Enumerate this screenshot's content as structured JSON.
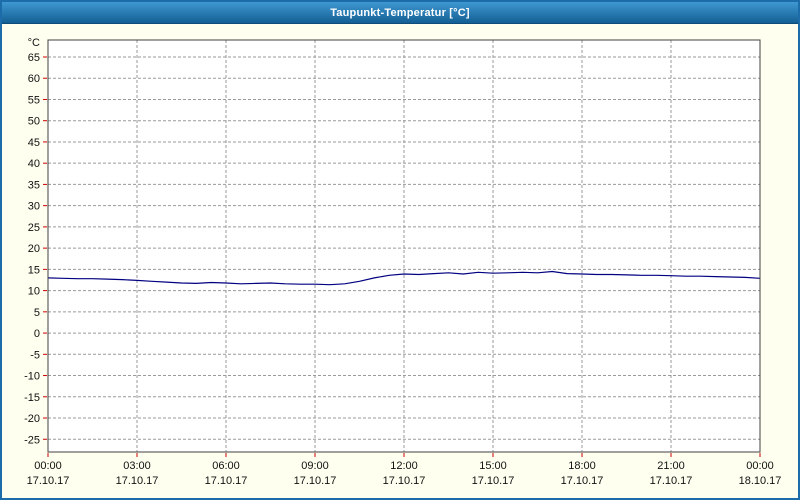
{
  "window": {
    "title": "Taupunkt-Temperatur [°C]",
    "titlebar_gradient": [
      "#3f98d2",
      "#135f94"
    ]
  },
  "chart_data": {
    "type": "line",
    "title": "Taupunkt-Temperatur [°C]",
    "ylabel": "°C",
    "xlabel": "",
    "ylim": [
      -28,
      69
    ],
    "xlim": [
      0,
      24
    ],
    "grid": true,
    "legend": "none",
    "yticks": [
      -25,
      -20,
      -15,
      -10,
      -5,
      0,
      5,
      10,
      15,
      20,
      25,
      30,
      35,
      40,
      45,
      50,
      55,
      60,
      65
    ],
    "xticks": [
      {
        "hour": 0,
        "time": "00:00",
        "date": "17.10.17"
      },
      {
        "hour": 3,
        "time": "03:00",
        "date": "17.10.17"
      },
      {
        "hour": 6,
        "time": "06:00",
        "date": "17.10.17"
      },
      {
        "hour": 9,
        "time": "09:00",
        "date": "17.10.17"
      },
      {
        "hour": 12,
        "time": "12:00",
        "date": "17.10.17"
      },
      {
        "hour": 15,
        "time": "15:00",
        "date": "17.10.17"
      },
      {
        "hour": 18,
        "time": "18:00",
        "date": "17.10.17"
      },
      {
        "hour": 21,
        "time": "21:00",
        "date": "17.10.17"
      },
      {
        "hour": 24,
        "time": "00:00",
        "date": "18.10.17"
      }
    ],
    "colors": {
      "series": "#000080",
      "grid": "#9a9a9a",
      "axis": "#404040",
      "tick": "#cc0000",
      "plot_bg": "#ffffff",
      "window_bg": "#fffff0"
    },
    "series": [
      {
        "name": "Taupunkt",
        "color": "#000080",
        "x": [
          0,
          0.5,
          1,
          1.5,
          2,
          2.5,
          3,
          3.5,
          4,
          4.5,
          5,
          5.5,
          6,
          6.5,
          7,
          7.5,
          8,
          8.5,
          9,
          9.5,
          10,
          10.5,
          11,
          11.5,
          12,
          12.5,
          13,
          13.5,
          14,
          14.5,
          15,
          15.5,
          16,
          16.5,
          17,
          17.5,
          18,
          18.5,
          19,
          19.5,
          20,
          20.5,
          21,
          21.5,
          22,
          22.5,
          23,
          23.5,
          24
        ],
        "y": [
          13.0,
          12.9,
          12.8,
          12.8,
          12.7,
          12.6,
          12.4,
          12.2,
          12.0,
          11.8,
          11.7,
          11.9,
          11.8,
          11.6,
          11.7,
          11.8,
          11.6,
          11.5,
          11.5,
          11.4,
          11.6,
          12.2,
          13.0,
          13.6,
          13.9,
          13.8,
          14.0,
          14.2,
          13.9,
          14.3,
          14.1,
          14.2,
          14.3,
          14.2,
          14.5,
          14.0,
          13.9,
          13.8,
          13.8,
          13.7,
          13.6,
          13.6,
          13.5,
          13.4,
          13.4,
          13.3,
          13.2,
          13.1,
          12.9
        ]
      }
    ]
  }
}
